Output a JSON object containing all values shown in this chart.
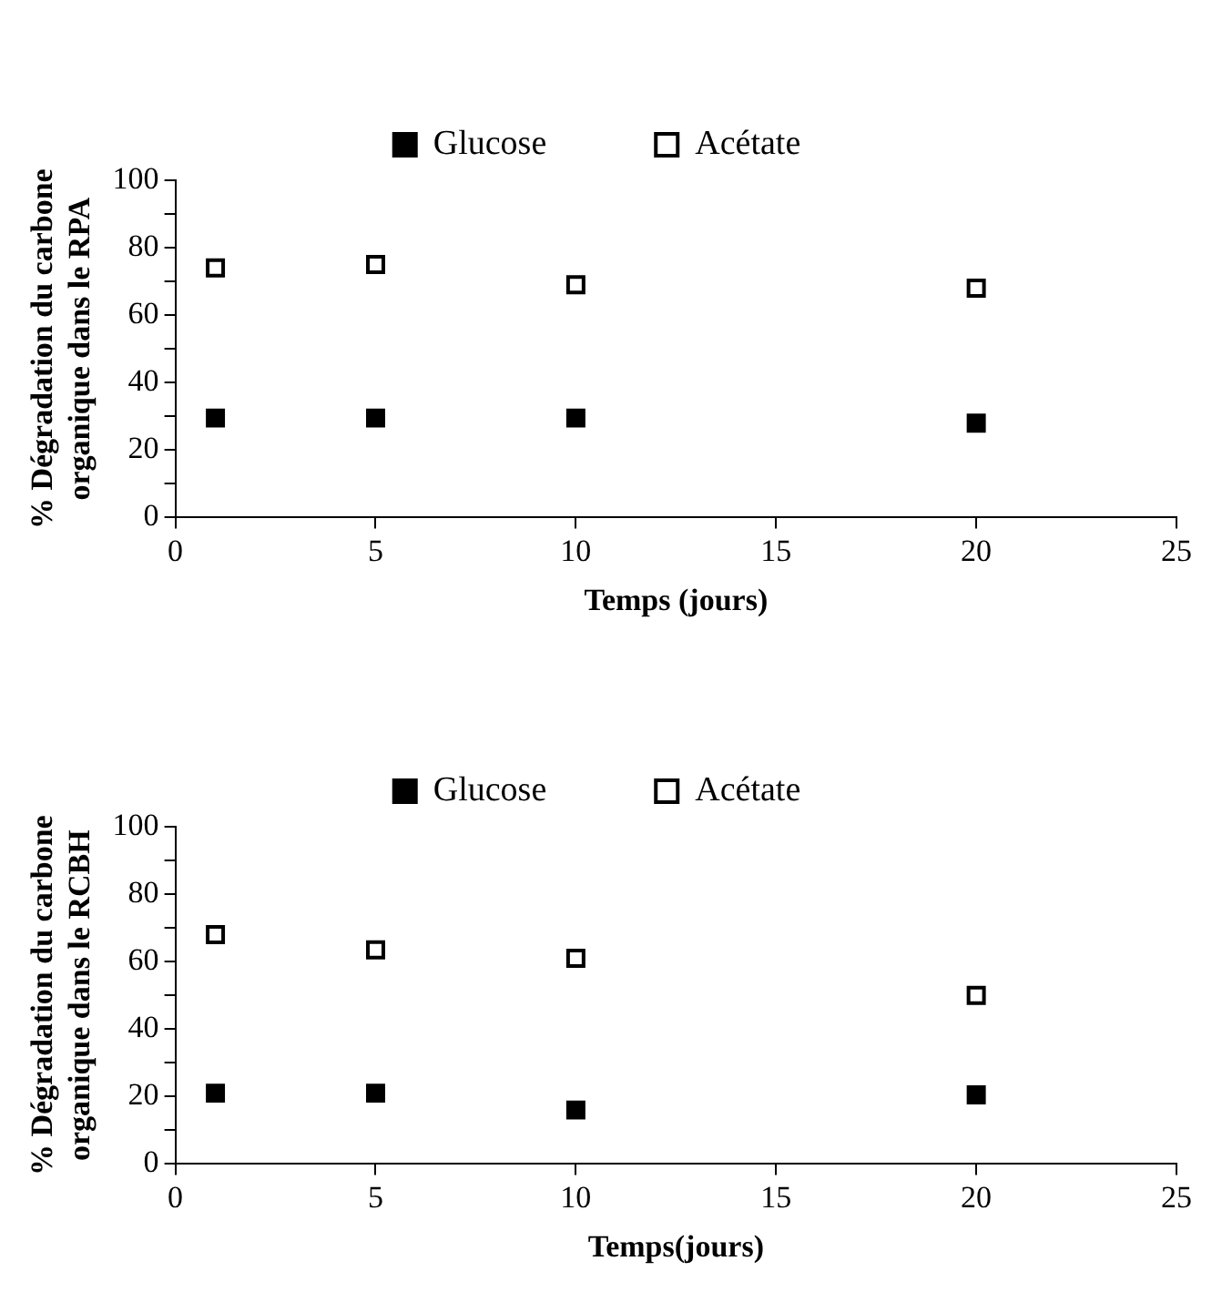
{
  "chart_data": [
    {
      "type": "scatter",
      "xlabel": "Temps (jours)",
      "ylabel": "% Dégradation du carbone\norganique dans le RPA",
      "xlim": [
        0,
        25
      ],
      "xticks": [
        0,
        5,
        10,
        15,
        20,
        25
      ],
      "ylim": [
        0,
        100
      ],
      "yticks": [
        0,
        {
          "value": 10,
          "label": null
        },
        20,
        {
          "value": 30,
          "label": null
        },
        40,
        {
          "value": 50,
          "label": null
        },
        60,
        {
          "value": 70,
          "label": null
        },
        80,
        {
          "value": 90,
          "label": null
        },
        100
      ],
      "grid": false,
      "legend": "top",
      "marker": "square",
      "x": [
        1,
        5,
        10,
        20
      ],
      "series": [
        {
          "name": "Glucose",
          "color": "#000000",
          "values": [
            29.5,
            29.5,
            29.5,
            28
          ]
        },
        {
          "name": "Acétate",
          "color": "#ffffff",
          "values": [
            74,
            75,
            69,
            68
          ]
        }
      ]
    },
    {
      "type": "scatter",
      "xlabel": "Temps(jours)",
      "ylabel": "% Dégradation du carbone\norganique dans le RCBH",
      "xlim": [
        0,
        25
      ],
      "xticks": [
        0,
        5,
        10,
        15,
        20,
        25
      ],
      "ylim": [
        0,
        100
      ],
      "yticks": [
        0,
        {
          "value": 10,
          "label": null
        },
        20,
        {
          "value": 30,
          "label": null
        },
        40,
        {
          "value": 50,
          "label": null
        },
        60,
        {
          "value": 70,
          "label": null
        },
        80,
        {
          "value": 90,
          "label": null
        },
        100
      ],
      "grid": false,
      "legend": "top",
      "marker": "square",
      "x": [
        1,
        5,
        10,
        20
      ],
      "series": [
        {
          "name": "Glucose",
          "color": "#000000",
          "values": [
            21,
            21,
            16,
            20.5
          ]
        },
        {
          "name": "Acétate",
          "color": "#ffffff",
          "values": [
            68,
            63.5,
            61,
            50
          ]
        }
      ]
    }
  ]
}
